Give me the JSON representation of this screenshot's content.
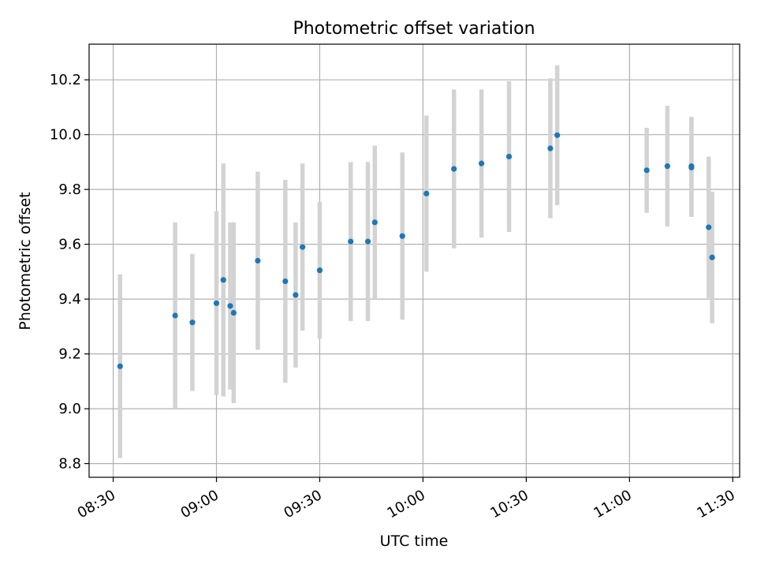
{
  "chart_data": {
    "type": "scatter",
    "title": "Photometric offset variation",
    "xlabel": "UTC time",
    "ylabel": "Photometric offset",
    "x_ticks": [
      "08:30",
      "09:00",
      "09:30",
      "10:00",
      "10:30",
      "11:00",
      "11:30"
    ],
    "y_ticks": [
      "8.8",
      "9.0",
      "9.2",
      "9.4",
      "9.6",
      "9.8",
      "10.0",
      "10.2"
    ],
    "y_tick_values": [
      8.8,
      9.0,
      9.2,
      9.4,
      9.6,
      9.8,
      10.0,
      10.2
    ],
    "xlim": [
      "08:23",
      "11:32"
    ],
    "ylim": [
      8.75,
      10.33
    ],
    "grid": true,
    "colors": {
      "point": "#1f77b4",
      "errorbar": "#d3d3d3",
      "grid": "#b0b0b0"
    },
    "points": [
      {
        "x": "08:32",
        "y": 9.155,
        "yerr": 0.335
      },
      {
        "x": "08:48",
        "y": 9.34,
        "yerr": 0.34
      },
      {
        "x": "08:53",
        "y": 9.315,
        "yerr": 0.25
      },
      {
        "x": "09:00",
        "y": 9.385,
        "yerr": 0.335
      },
      {
        "x": "09:02",
        "y": 9.47,
        "yerr": 0.425
      },
      {
        "x": "09:04",
        "y": 9.375,
        "yerr": 0.305
      },
      {
        "x": "09:05",
        "y": 9.35,
        "yerr": 0.33
      },
      {
        "x": "09:12",
        "y": 9.54,
        "yerr": 0.325
      },
      {
        "x": "09:20",
        "y": 9.465,
        "yerr": 0.37
      },
      {
        "x": "09:23",
        "y": 9.415,
        "yerr": 0.265
      },
      {
        "x": "09:25",
        "y": 9.59,
        "yerr": 0.305
      },
      {
        "x": "09:30",
        "y": 9.505,
        "yerr": 0.25
      },
      {
        "x": "09:39",
        "y": 9.61,
        "yerr": 0.29
      },
      {
        "x": "09:44",
        "y": 9.61,
        "yerr": 0.29
      },
      {
        "x": "09:46",
        "y": 9.68,
        "yerr": 0.28
      },
      {
        "x": "09:54",
        "y": 9.63,
        "yerr": 0.305
      },
      {
        "x": "10:01",
        "y": 9.785,
        "yerr": 0.285
      },
      {
        "x": "10:09",
        "y": 9.875,
        "yerr": 0.29
      },
      {
        "x": "10:17",
        "y": 9.895,
        "yerr": 0.27
      },
      {
        "x": "10:25",
        "y": 9.92,
        "yerr": 0.275
      },
      {
        "x": "10:37",
        "y": 9.95,
        "yerr": 0.255
      },
      {
        "x": "10:39",
        "y": 9.998,
        "yerr": 0.255
      },
      {
        "x": "11:05",
        "y": 9.87,
        "yerr": 0.155
      },
      {
        "x": "11:11",
        "y": 9.885,
        "yerr": 0.22
      },
      {
        "x": "11:18",
        "y": 9.88,
        "yerr": 0.18
      },
      {
        "x": "11:18",
        "y": 9.885,
        "yerr": 0.18
      },
      {
        "x": "11:23",
        "y": 9.662,
        "yerr": 0.258
      },
      {
        "x": "11:24",
        "y": 9.552,
        "yerr": 0.24
      }
    ]
  }
}
